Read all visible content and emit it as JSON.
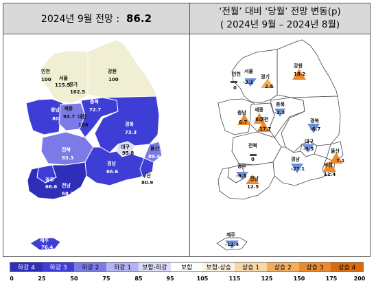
{
  "left_panel": {
    "title": "2024년 9월 전망 :",
    "value": "86.2",
    "regions": [
      {
        "name": "인천",
        "value": "100"
      },
      {
        "name": "서울",
        "value": "115.5"
      },
      {
        "name": "경기",
        "value": "102.5"
      },
      {
        "name": "강원",
        "value": "100"
      },
      {
        "name": "충남",
        "value": "80"
      },
      {
        "name": "세종",
        "value": "93.7"
      },
      {
        "name": "대전",
        "value": "100"
      },
      {
        "name": "충북",
        "value": "72.7"
      },
      {
        "name": "경북",
        "value": "73.3"
      },
      {
        "name": "전북",
        "value": "83.3"
      },
      {
        "name": "대구",
        "value": "95.8"
      },
      {
        "name": "울산",
        "value": "89.4"
      },
      {
        "name": "경남",
        "value": "66.6"
      },
      {
        "name": "부산",
        "value": "80.9"
      },
      {
        "name": "광주",
        "value": "66.6"
      },
      {
        "name": "전남",
        "value": "68.7"
      },
      {
        "name": "제주",
        "value": "76.4"
      }
    ]
  },
  "right_panel": {
    "title_line1": "‘전월’ 대비 ‘당월’ 전망 변동(p)",
    "title_line2": "( 2024년 9월 –   2024년 8월)",
    "regions": [
      {
        "name": "인천",
        "value": "0"
      },
      {
        "name": "서울",
        "value": "-3.1"
      },
      {
        "name": "경기",
        "value": "2.6"
      },
      {
        "name": "강원",
        "value": "18.2"
      },
      {
        "name": "충남",
        "value": "6.7"
      },
      {
        "name": "세종",
        "value": "8.7"
      },
      {
        "name": "대전",
        "value": "17.7"
      },
      {
        "name": "충북",
        "value": "-2.3"
      },
      {
        "name": "경북",
        "value": "-6.7"
      },
      {
        "name": "대구",
        "value": "-9.5"
      },
      {
        "name": "전북",
        "value": "0"
      },
      {
        "name": "울산",
        "value": "7.1"
      },
      {
        "name": "경남",
        "value": "-27.1"
      },
      {
        "name": "부산",
        "value": "11.4"
      },
      {
        "name": "광주",
        "value": "-9.8"
      },
      {
        "name": "전남",
        "value": "12.5"
      },
      {
        "name": "제주",
        "value": "-12.4"
      }
    ]
  },
  "legend": {
    "items": [
      {
        "label": "하강 4",
        "color": "#2e2eb8"
      },
      {
        "label": "하강 3",
        "color": "#3e3ed6"
      },
      {
        "label": "하강 2",
        "color": "#7b7be8"
      },
      {
        "label": "하강 1",
        "color": "#b4b4f2"
      },
      {
        "label": "보합-하강",
        "color": "#dcdcf7"
      },
      {
        "label": "보합",
        "color": "#ffffff"
      },
      {
        "label": "보합-상승",
        "color": "#fbf3e2"
      },
      {
        "label": "상승 1",
        "color": "#f7d7a6"
      },
      {
        "label": "상승 2",
        "color": "#f2ae5e"
      },
      {
        "label": "상승 3",
        "color": "#ec8a2e"
      },
      {
        "label": "상승 4",
        "color": "#d96a0d"
      }
    ],
    "ticks": [
      "0",
      "25",
      "50",
      "75",
      "85",
      "95",
      "105",
      "115",
      "125",
      "150",
      "175",
      "200"
    ]
  }
}
